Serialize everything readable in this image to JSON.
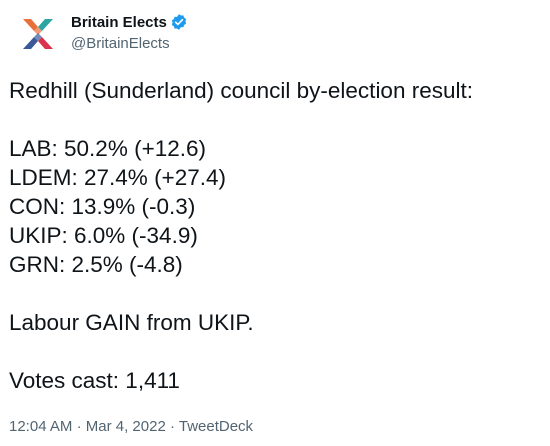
{
  "account": {
    "display_name": "Britain Elects",
    "handle": "@BritainElects",
    "verified_icon": "verified-badge-icon",
    "avatar_icon": "britain-elects-logo",
    "colors": {
      "verified": "#1d9bf0",
      "logo_orange": "#e8703a",
      "logo_teal": "#2aa5a0",
      "logo_blue": "#3b5998",
      "logo_red": "#d9334d"
    }
  },
  "tweet": {
    "heading": "Redhill (Sunderland) council by-election result:",
    "results": [
      "LAB: 50.2% (+12.6)",
      "LDEM: 27.4% (+27.4)",
      "CON: 13.9% (-0.3)",
      "UKIP: 6.0% (-34.9)",
      "GRN: 2.5% (-4.8)"
    ],
    "outcome": "Labour GAIN from UKIP.",
    "votes": "Votes cast: 1,411"
  },
  "meta": {
    "time": "12:04 AM",
    "separator": "·",
    "date": "Mar 4, 2022",
    "source": "TweetDeck"
  }
}
